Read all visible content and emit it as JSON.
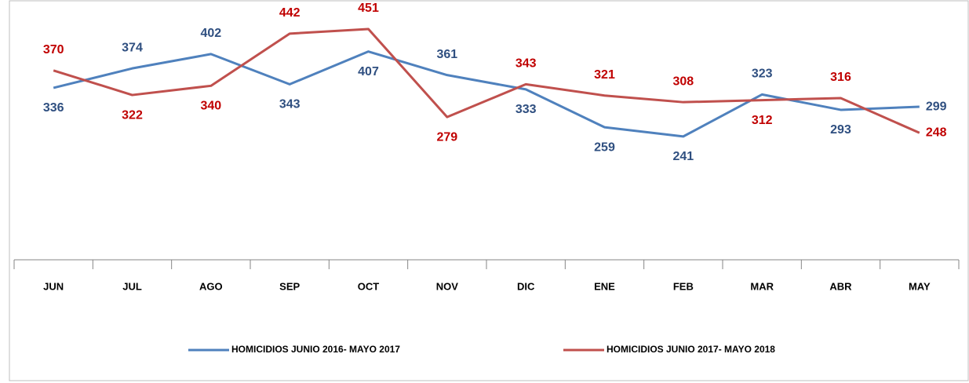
{
  "chart_data": {
    "type": "line",
    "categories": [
      "JUN",
      "JUL",
      "AGO",
      "SEP",
      "OCT",
      "NOV",
      "DIC",
      "ENE",
      "FEB",
      "MAR",
      "ABR",
      "MAY"
    ],
    "series": [
      {
        "name": "HOMICIDIOS JUNIO 2016- MAYO 2017",
        "color": "#4f81bd",
        "label_color": "#2f4f80",
        "values": [
          336,
          374,
          402,
          343,
          407,
          361,
          333,
          259,
          241,
          323,
          293,
          299
        ]
      },
      {
        "name": "HOMICIDIOS JUNIO 2017- MAYO 2018",
        "color": "#c0504d",
        "label_color": "#c00000",
        "values": [
          370,
          322,
          340,
          442,
          451,
          279,
          343,
          321,
          308,
          312,
          316,
          248
        ]
      }
    ],
    "ylim": [
      0,
      500
    ],
    "legend": "bottom"
  }
}
